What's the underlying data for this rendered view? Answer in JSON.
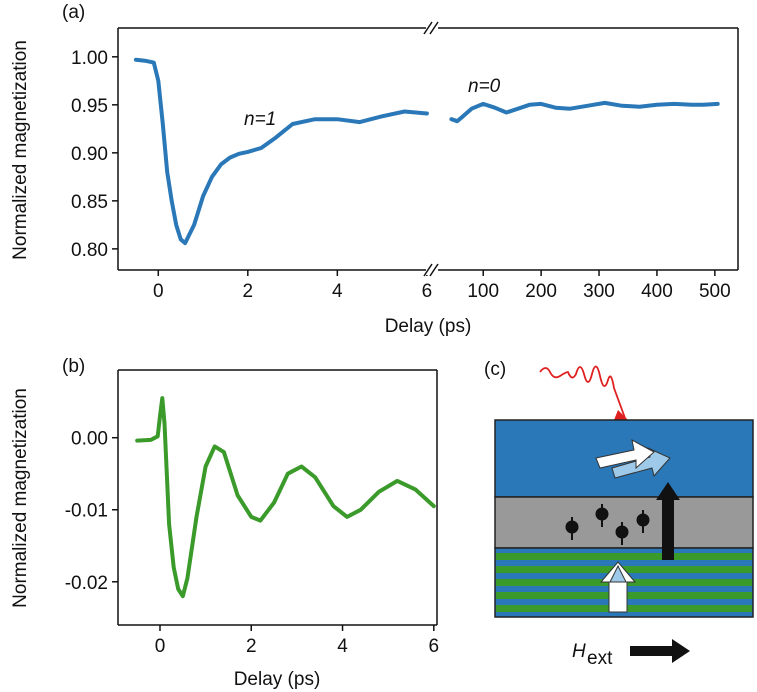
{
  "chart_data": [
    {
      "type": "line",
      "panel_label": "(a)",
      "ylabel": "Normalized magnetization",
      "xlabel": "Delay (ps)",
      "annotation": "n=1",
      "color": "#2a78b8",
      "x": [
        -0.5,
        -0.3,
        -0.1,
        0,
        0.1,
        0.2,
        0.3,
        0.4,
        0.5,
        0.6,
        0.8,
        1.0,
        1.2,
        1.4,
        1.6,
        1.8,
        2.0,
        2.3,
        2.6,
        3.0,
        3.5,
        4.0,
        4.5,
        5.0,
        5.5,
        6.0
      ],
      "values": [
        0.997,
        0.996,
        0.994,
        0.975,
        0.93,
        0.88,
        0.85,
        0.825,
        0.81,
        0.806,
        0.825,
        0.855,
        0.875,
        0.888,
        0.895,
        0.899,
        0.901,
        0.905,
        0.915,
        0.93,
        0.935,
        0.935,
        0.932,
        0.938,
        0.943,
        0.941
      ],
      "xlim": [
        -0.9,
        6.07
      ],
      "xticks": [
        0,
        2,
        4,
        6
      ],
      "ylim": [
        0.778,
        1.03
      ],
      "yticks": [
        {
          "value": 0.8,
          "label": "0.80"
        },
        0.85,
        {
          "value": 0.9,
          "label": "0.90"
        },
        0.95,
        {
          "value": 1.0,
          "label": "1.00"
        }
      ]
    },
    {
      "type": "line",
      "annotation": "n=0",
      "color": "#2a78b8",
      "x": [
        45,
        55,
        65,
        80,
        100,
        120,
        140,
        160,
        180,
        200,
        225,
        250,
        280,
        310,
        340,
        370,
        400,
        430,
        460,
        480,
        505
      ],
      "values": [
        0.935,
        0.933,
        0.938,
        0.946,
        0.951,
        0.947,
        0.942,
        0.946,
        0.95,
        0.951,
        0.947,
        0.946,
        0.949,
        0.952,
        0.949,
        0.948,
        0.95,
        0.951,
        0.95,
        0.95,
        0.951
      ],
      "xlim": [
        15,
        540
      ],
      "xticks": [
        100,
        200,
        300,
        400,
        500
      ],
      "ylim": [
        0.778,
        1.03
      ]
    },
    {
      "type": "line",
      "panel_label": "(b)",
      "ylabel": "Normalized magnetization",
      "xlabel": "Delay (ps)",
      "color": "#3a9a2a",
      "x": [
        -0.5,
        -0.2,
        -0.05,
        0,
        0.05,
        0.1,
        0.15,
        0.2,
        0.3,
        0.4,
        0.5,
        0.6,
        0.8,
        1.0,
        1.2,
        1.4,
        1.7,
        2.0,
        2.2,
        2.5,
        2.8,
        3.1,
        3.4,
        3.8,
        4.1,
        4.4,
        4.8,
        5.2,
        5.6,
        6.0
      ],
      "values": [
        -0.0004,
        -0.0003,
        0.0002,
        0.003,
        0.0055,
        0.002,
        -0.005,
        -0.012,
        -0.018,
        -0.021,
        -0.022,
        -0.0195,
        -0.011,
        -0.004,
        -0.0012,
        -0.002,
        -0.008,
        -0.011,
        -0.0115,
        -0.009,
        -0.005,
        -0.004,
        -0.0055,
        -0.0095,
        -0.011,
        -0.01,
        -0.0075,
        -0.006,
        -0.0072,
        -0.0095
      ],
      "xlim": [
        -0.92,
        6.07
      ],
      "xticks": [
        0,
        2,
        4,
        6
      ],
      "ylim": [
        -0.026,
        0.0094
      ],
      "yticks": [
        -0.02,
        -0.01,
        {
          "value": 0,
          "label": "0.00"
        }
      ]
    }
  ],
  "diagram": {
    "panel_label": "(c)",
    "field_symbol": "H",
    "field_subscript": "ext"
  }
}
